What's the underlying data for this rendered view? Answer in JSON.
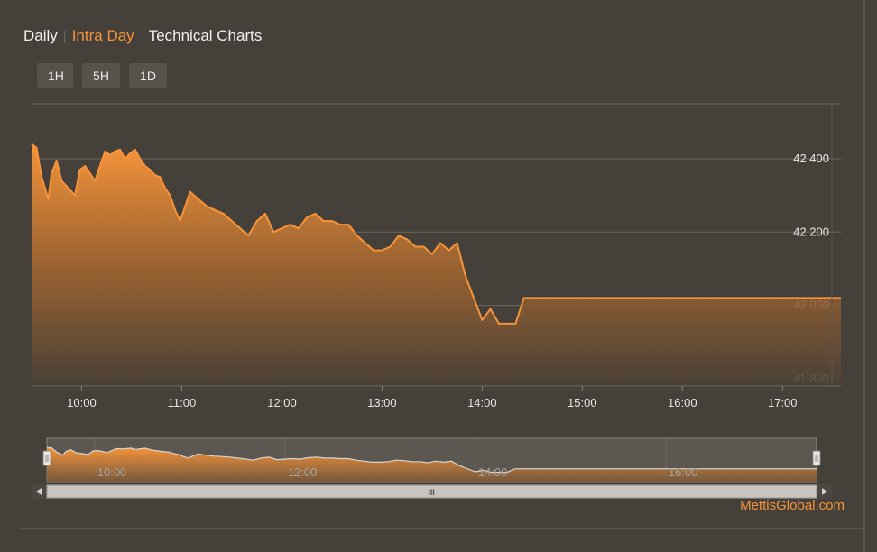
{
  "tabs": {
    "daily": "Daily",
    "intraday": "Intra Day",
    "technical": "Technical Charts"
  },
  "range_buttons": [
    "1H",
    "5H",
    "1D"
  ],
  "watermark": "MettisGlobal.com",
  "colors": {
    "background": "#454039",
    "accent": "#f7943a",
    "grid": "#6a655e"
  },
  "chart_data": {
    "type": "area",
    "title": "",
    "xlabel": "",
    "ylabel": "",
    "ylim": [
      41780,
      42550
    ],
    "xlim": [
      "09:30",
      "17:35"
    ],
    "y_ticks": [
      {
        "value": 42400,
        "label": "42 400"
      },
      {
        "value": 42200,
        "label": "42 200"
      },
      {
        "value": 42000,
        "label": "42 000"
      },
      {
        "value": 41800,
        "label": "41 800"
      }
    ],
    "x_ticks": [
      "10:00",
      "11:00",
      "12:00",
      "13:00",
      "14:00",
      "15:00",
      "16:00",
      "17:00"
    ],
    "navigator_ticks": [
      "10:00",
      "12:00",
      "14:00",
      "16:00"
    ],
    "navigator_scrollbar_label": "III",
    "series": [
      {
        "x": [
          "09:30",
          "09:33",
          "09:36",
          "09:40",
          "09:42",
          "09:45",
          "09:48",
          "09:52",
          "09:56",
          "09:59",
          "10:02",
          "10:05",
          "10:08",
          "10:11",
          "10:14",
          "10:17",
          "10:20",
          "10:23",
          "10:26",
          "10:29",
          "10:32",
          "10:35",
          "10:38",
          "10:41",
          "10:44",
          "10:47",
          "10:50",
          "10:53",
          "10:56",
          "10:59",
          "11:02",
          "11:05",
          "11:10",
          "11:15",
          "11:20",
          "11:25",
          "11:30",
          "11:35",
          "11:40",
          "11:45",
          "11:50",
          "11:55",
          "12:00",
          "12:05",
          "12:10",
          "12:15",
          "12:20",
          "12:25",
          "12:30",
          "12:35",
          "12:40",
          "12:45",
          "12:50",
          "12:55",
          "13:00",
          "13:05",
          "13:10",
          "13:15",
          "13:20",
          "13:25",
          "13:30",
          "13:35",
          "13:40",
          "13:45",
          "13:50",
          "13:55",
          "14:00",
          "14:05",
          "14:10",
          "14:15",
          "14:20",
          "14:25",
          "14:30",
          "14:35",
          "14:40",
          "14:45",
          "14:50",
          "14:55",
          "15:00",
          "15:05",
          "15:10",
          "15:15",
          "15:20",
          "15:25",
          "15:27",
          "15:30",
          "15:35",
          "15:40",
          "15:42",
          "15:43",
          "16:00",
          "16:30",
          "17:00",
          "17:35"
        ],
        "y": [
          42440,
          42430,
          42350,
          42290,
          42360,
          42395,
          42340,
          42320,
          42300,
          42370,
          42380,
          42360,
          42340,
          42380,
          42420,
          42410,
          42420,
          42425,
          42400,
          42415,
          42425,
          42400,
          42380,
          42370,
          42355,
          42350,
          42320,
          42300,
          42260,
          42230,
          42270,
          42310,
          42290,
          42270,
          42260,
          42250,
          42230,
          42210,
          42190,
          42230,
          42250,
          42200,
          42210,
          42220,
          42210,
          42240,
          42250,
          42230,
          42230,
          42220,
          42220,
          42190,
          42170,
          42150,
          42150,
          42160,
          42190,
          42180,
          42160,
          42160,
          42140,
          42170,
          42150,
          42170,
          42080,
          42020,
          41960,
          41990,
          41950,
          41950,
          41950,
          42020,
          42020,
          42020,
          42020,
          42020,
          42020,
          42020,
          42020,
          42020,
          42020,
          42020,
          42020,
          42020,
          42020,
          42020,
          42020,
          42020,
          42020,
          42020,
          42020,
          42020,
          42020,
          42020
        ]
      }
    ]
  }
}
